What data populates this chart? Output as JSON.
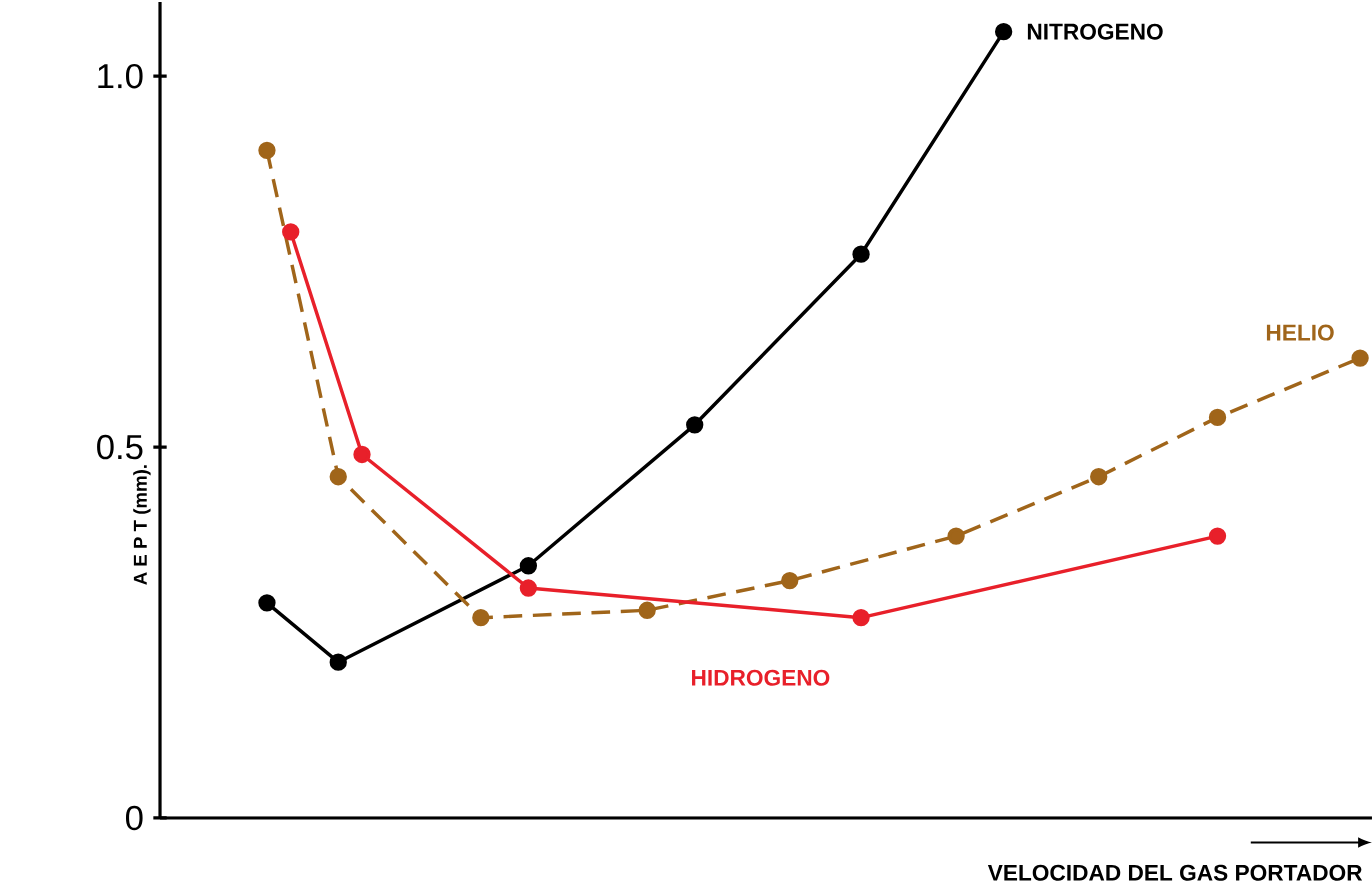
{
  "chart_data": {
    "type": "line",
    "xlabel": "VELOCIDAD DEL GAS PORTADOR",
    "ylabel": "A E P T (mm).",
    "ylim": [
      0,
      1.1
    ],
    "yticks": [
      0,
      0.5,
      {
        "value": 1,
        "label": "1.0"
      }
    ],
    "tick_labels": "y",
    "marker": "circle",
    "grid": false,
    "categories": [
      null,
      null,
      null,
      null,
      null,
      null,
      null,
      null,
      null,
      null,
      null,
      null,
      null,
      null,
      null,
      null,
      null,
      null,
      null,
      null,
      null,
      null,
      null,
      null,
      null,
      null,
      null,
      null,
      null,
      null,
      null,
      null,
      null,
      null,
      null,
      null,
      null,
      null,
      null,
      null,
      null,
      null,
      null,
      null,
      null,
      null,
      null,
      null,
      null,
      null,
      null
    ],
    "series": [
      {
        "name": "NITROGENO",
        "color": "#000000",
        "line_style": "solid",
        "values": [
          null,
          null,
          null,
          null,
          0.29,
          null,
          null,
          0.21,
          null,
          null,
          null,
          null,
          null,
          null,
          null,
          0.34,
          null,
          null,
          null,
          null,
          null,
          null,
          0.53,
          null,
          null,
          null,
          null,
          null,
          null,
          0.76,
          null,
          null,
          null,
          null,
          null,
          1.06,
          null,
          null,
          null,
          null,
          null,
          null,
          null,
          null,
          null,
          null,
          null,
          null,
          null,
          null,
          null
        ]
      },
      {
        "name": "HELIO",
        "color": "#a0651a",
        "line_style": "dashed",
        "values": [
          null,
          null,
          null,
          null,
          0.9,
          null,
          null,
          0.46,
          null,
          null,
          null,
          null,
          null,
          0.27,
          null,
          null,
          null,
          null,
          null,
          null,
          0.28,
          null,
          null,
          null,
          null,
          null,
          0.32,
          null,
          null,
          null,
          null,
          null,
          null,
          0.38,
          null,
          null,
          null,
          null,
          null,
          0.46,
          null,
          null,
          null,
          null,
          0.54,
          null,
          null,
          null,
          null,
          null,
          0.62
        ]
      },
      {
        "name": "HIDROGENO",
        "color": "#e8202a",
        "line_style": "solid",
        "values": [
          null,
          null,
          null,
          null,
          null,
          0.79,
          null,
          null,
          0.49,
          null,
          null,
          null,
          null,
          null,
          null,
          0.31,
          null,
          null,
          null,
          null,
          null,
          null,
          null,
          null,
          null,
          null,
          null,
          null,
          null,
          0.27,
          null,
          null,
          null,
          null,
          null,
          null,
          null,
          null,
          null,
          null,
          null,
          null,
          null,
          null,
          0.38,
          null,
          null,
          null,
          null,
          null,
          null
        ]
      }
    ]
  }
}
